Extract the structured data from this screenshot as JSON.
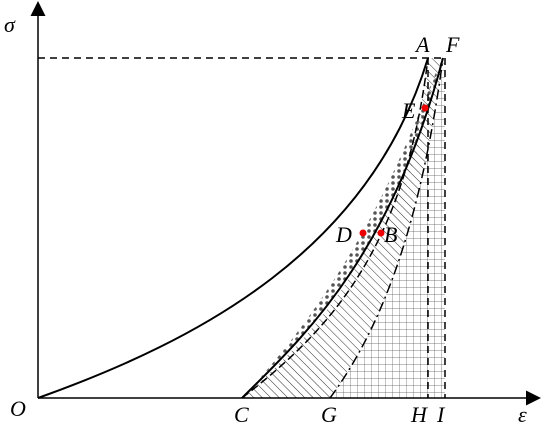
{
  "axes": {
    "y_label": "σ",
    "x_label": "ε",
    "origin": "O"
  },
  "points": {
    "A": "A",
    "F": "F",
    "E": "E",
    "D": "D",
    "B": "B",
    "C": "C",
    "G": "G",
    "H": "H",
    "I": "I"
  }
}
